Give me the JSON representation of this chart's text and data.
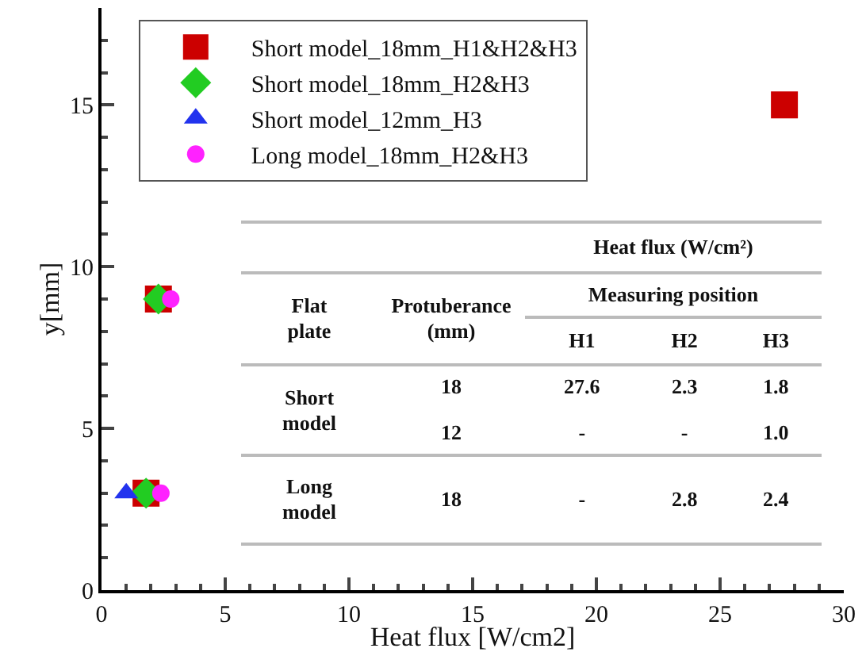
{
  "chart_data": {
    "type": "scatter",
    "xlabel": "Heat flux [W/cm2]",
    "ylabel": "y[mm]",
    "xlim": [
      0,
      30
    ],
    "xticks": [
      0,
      5,
      10,
      15,
      20,
      25,
      30
    ],
    "ylim": [
      0,
      18
    ],
    "yticks": [
      0,
      5,
      10,
      15
    ],
    "legend": "top left",
    "grid": false,
    "series": [
      {
        "name": "Short model_18mm_H1&H2&H3",
        "color": "#cc0000",
        "marker": "square",
        "x": [
          27.6,
          2.3,
          1.8
        ],
        "values": [
          15,
          9,
          3
        ]
      },
      {
        "name": "Short model_18mm_H2&H3",
        "color": "#22cc22",
        "marker": "diamond",
        "x": [
          2.3,
          1.8
        ],
        "values": [
          9,
          3
        ]
      },
      {
        "name": "Short model_12mm_H3",
        "color": "#2233ee",
        "marker": "triangle",
        "x": [
          1.0
        ],
        "values": [
          3
        ]
      },
      {
        "name": "Long model_18mm_H2&H3",
        "color": "#ff22ff",
        "marker": "circle",
        "x": [
          2.8,
          2.4
        ],
        "values": [
          9,
          3
        ]
      }
    ],
    "annotations": [
      "Heat flux (W/cm²)",
      "Flat plate",
      "Protuberance (mm)",
      "Measuring position",
      "H1",
      "H2",
      "H3",
      "Short model",
      "18",
      "27.6",
      "2.3",
      "1.8",
      "12",
      "-",
      "-",
      "1.0",
      "Long model",
      "18",
      "-",
      "2.8",
      "2.4"
    ]
  }
}
